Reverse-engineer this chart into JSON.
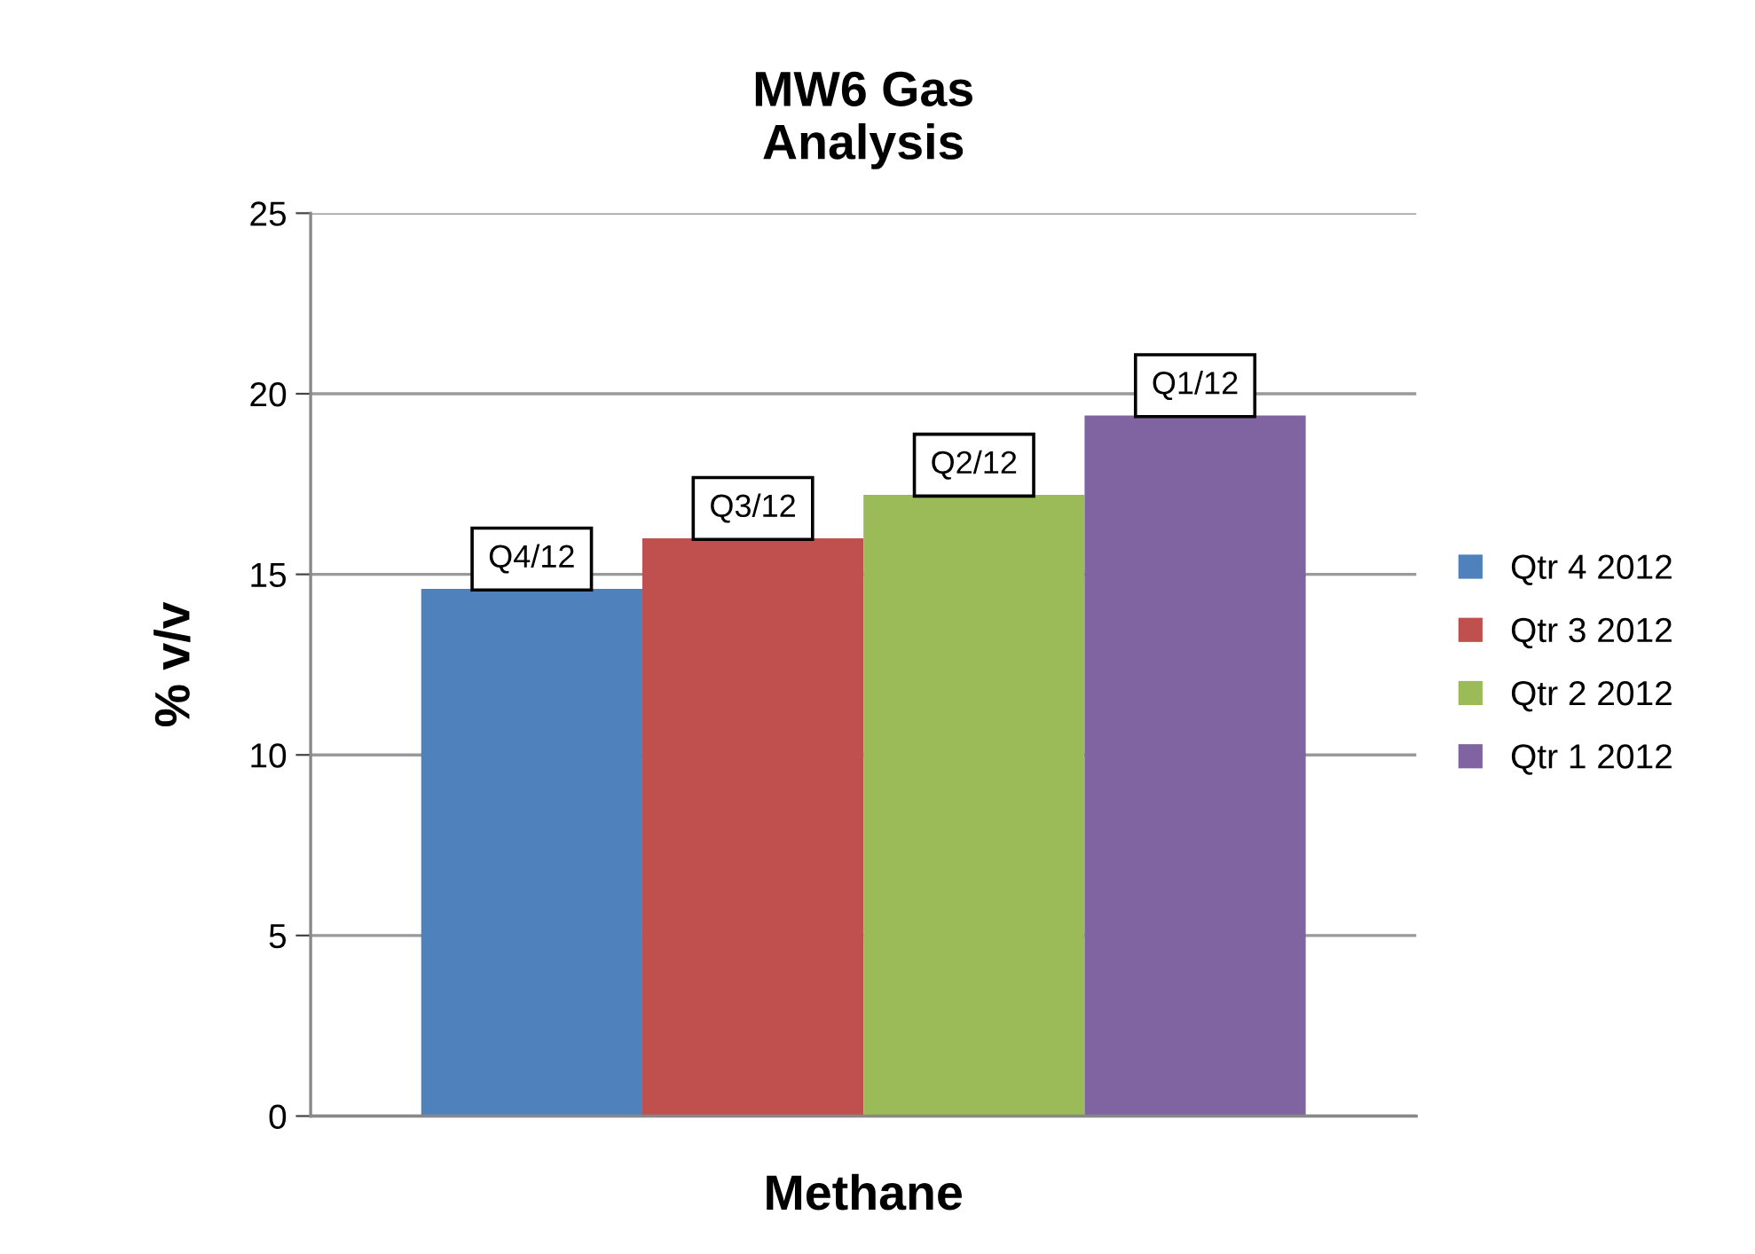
{
  "chart_data": {
    "type": "bar",
    "title": "MW6 Gas\nAnalysis",
    "ylabel": "% v/v",
    "xlabel": "Methane",
    "categories": [
      null
    ],
    "series": [
      {
        "name": "Qtr 4 2012",
        "color": "#4f81bd",
        "values": [
          14.6
        ],
        "value_labels": [
          "Q4/12"
        ]
      },
      {
        "name": "Qtr 3 2012",
        "color": "#c0504d",
        "values": [
          16.0
        ],
        "value_labels": [
          "Q3/12"
        ]
      },
      {
        "name": "Qtr 2 2012",
        "color": "#9bbb59",
        "values": [
          17.2
        ],
        "value_labels": [
          "Q2/12"
        ]
      },
      {
        "name": "Qtr 1 2012",
        "color": "#8064a2",
        "values": [
          19.4
        ],
        "value_labels": [
          "Q1/12"
        ]
      }
    ],
    "ylim": [
      0,
      25
    ],
    "yticks": [
      0,
      5,
      10,
      15,
      20,
      25
    ],
    "grid": "y",
    "legend": "right"
  }
}
